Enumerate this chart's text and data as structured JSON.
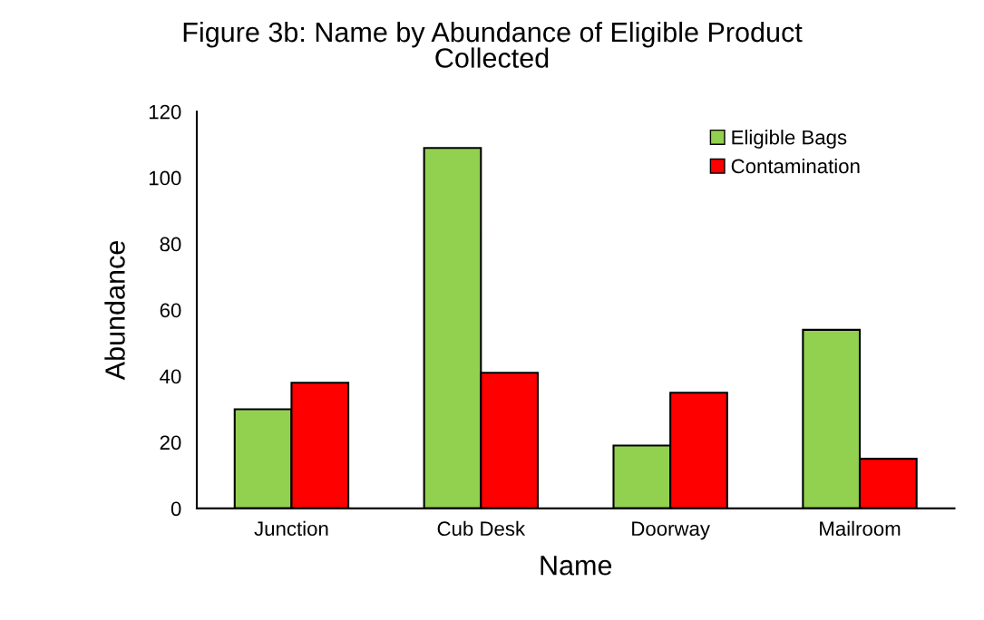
{
  "chart_data": {
    "type": "bar",
    "title": "Figure 3b: Name by Abundance of Eligible Product\nCollected",
    "xlabel": "Name",
    "ylabel": "Abundance",
    "categories": [
      "Junction",
      "Cub Desk",
      "Doorway",
      "Mailroom"
    ],
    "series": [
      {
        "name": "Eligible Bags",
        "color": "#92d050",
        "values": [
          30,
          109,
          19,
          54
        ]
      },
      {
        "name": "Contamination",
        "color": "#ff0000",
        "values": [
          38,
          41,
          35,
          15
        ]
      }
    ],
    "ylim": [
      0,
      120
    ],
    "yticks": [
      0,
      20,
      40,
      60,
      80,
      100,
      120
    ],
    "grid": false,
    "legend": "top right"
  }
}
